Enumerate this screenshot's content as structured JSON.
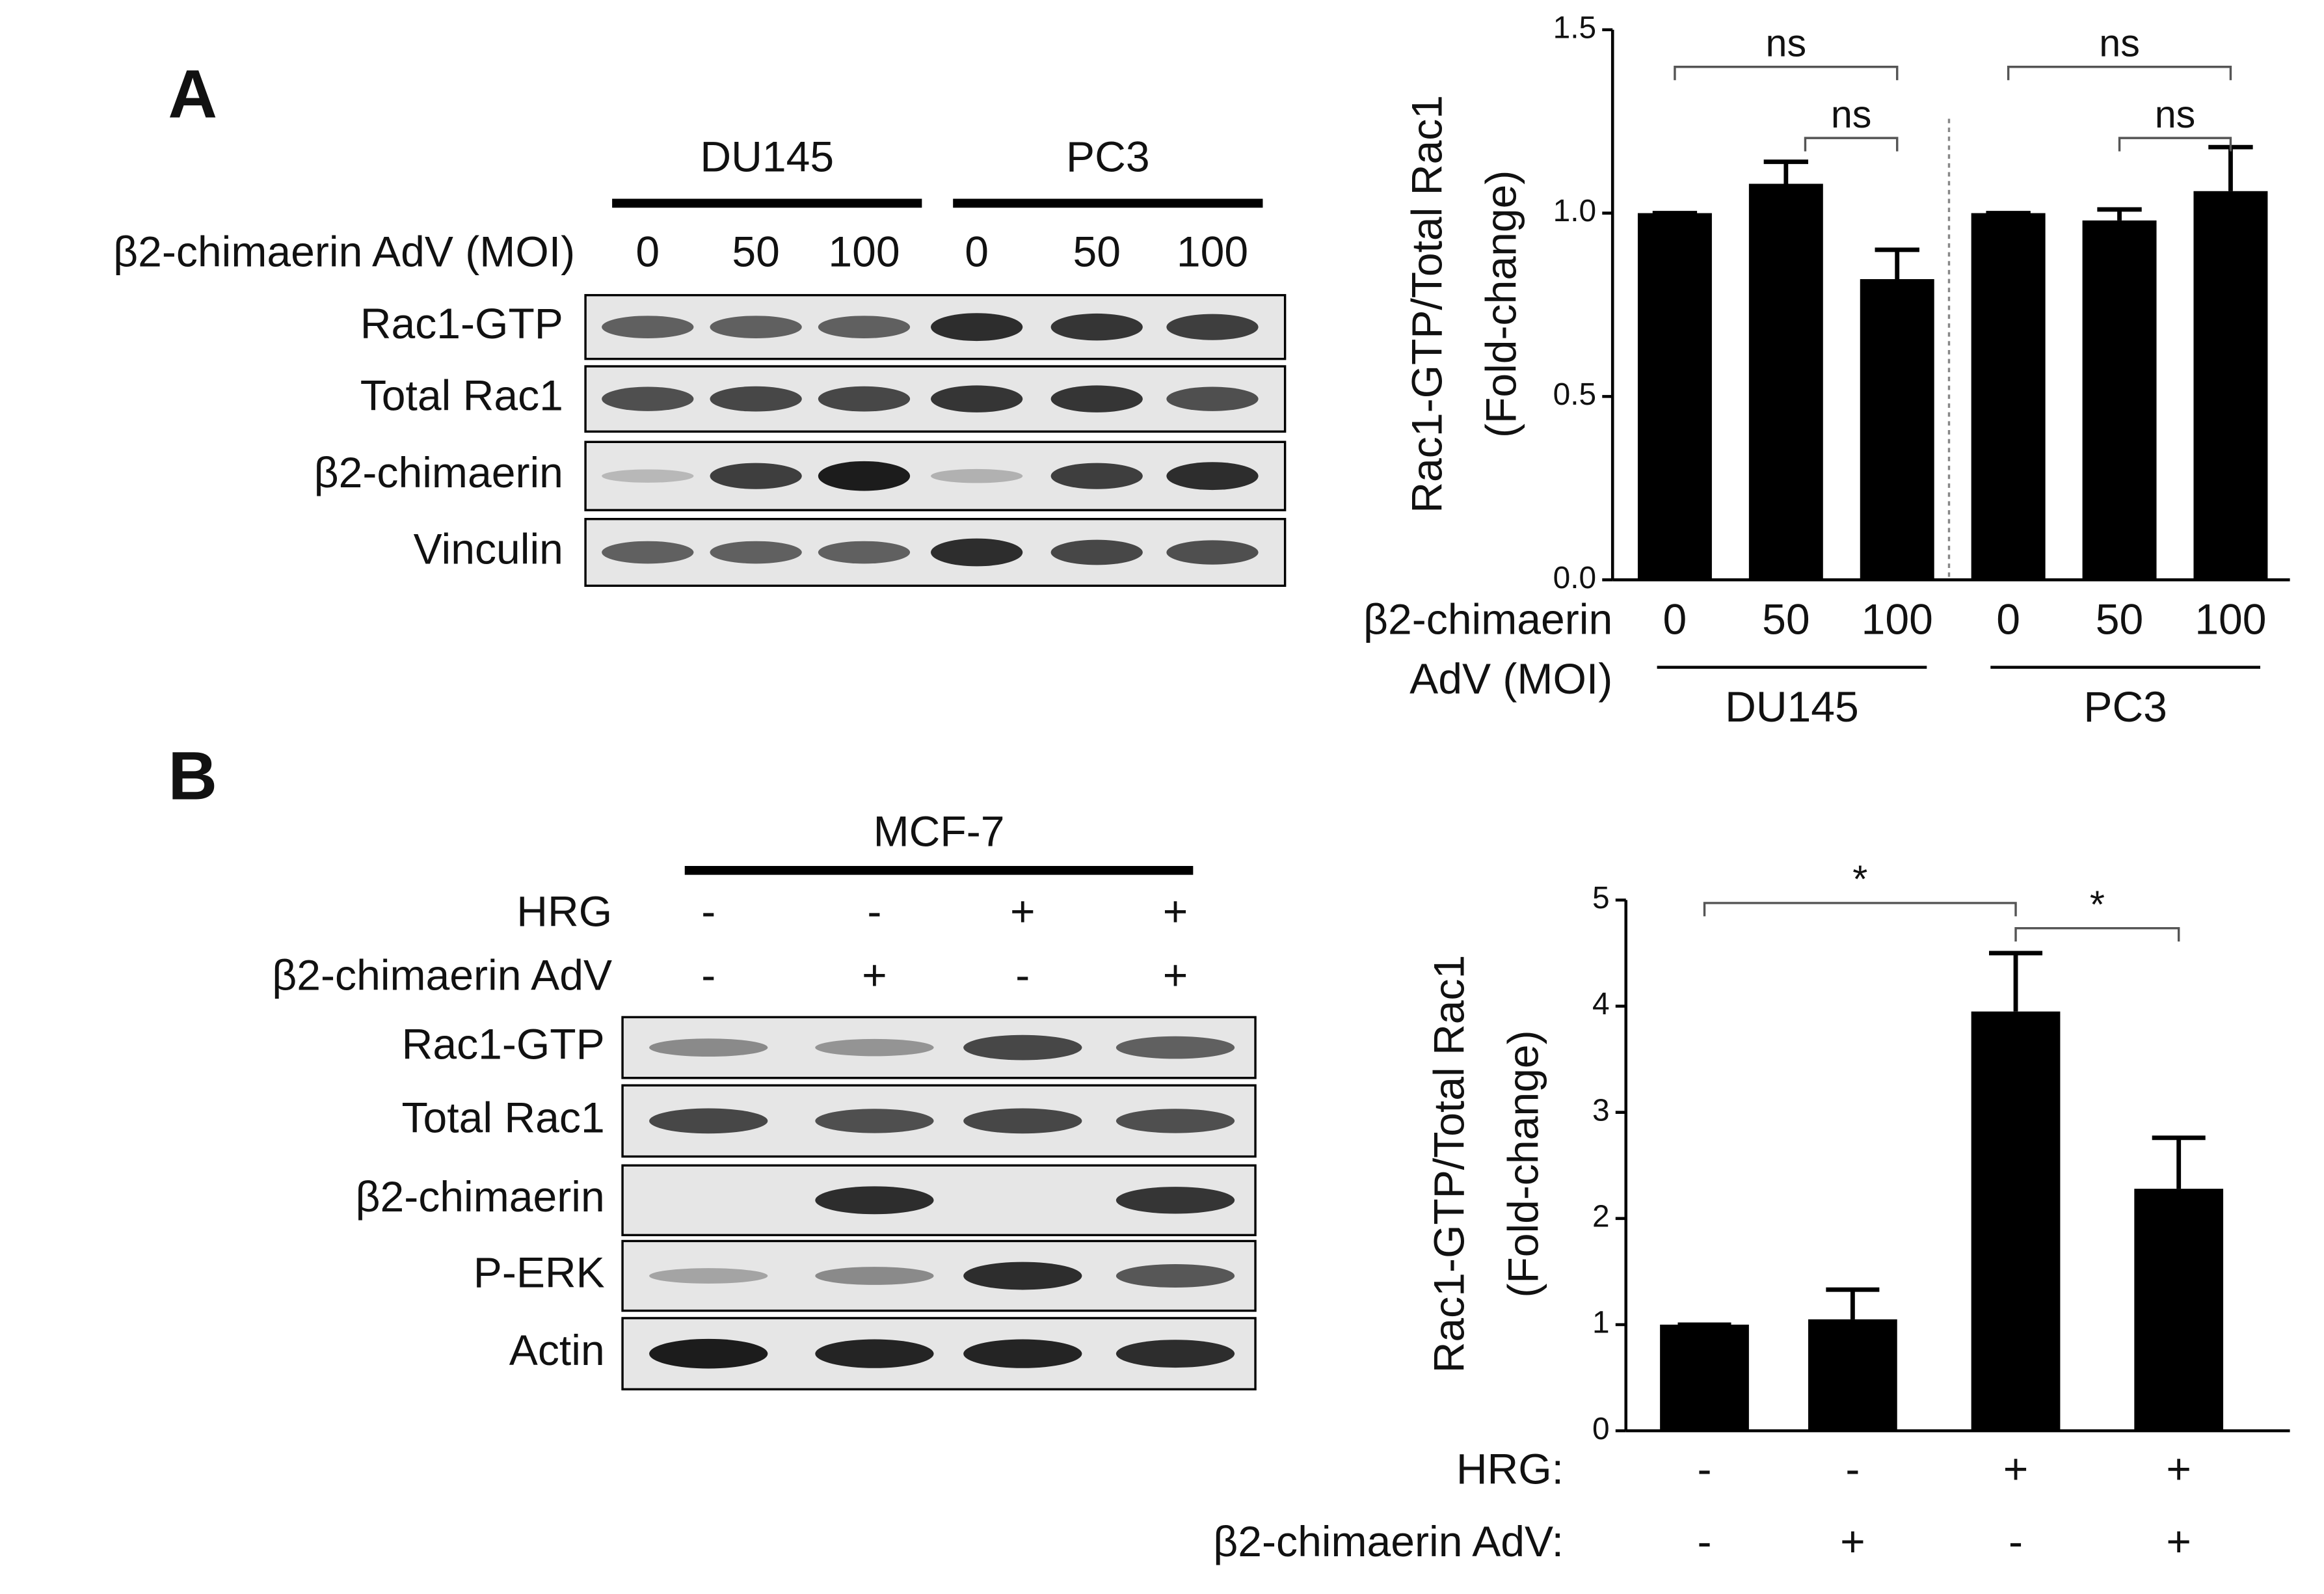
{
  "blots": [
    {
      "panel": "A",
      "groups": [
        "DU145",
        "PC3"
      ],
      "condition_rows": [
        {
          "label": "β2-chimaerin AdV (MOI)",
          "values": [
            "0",
            "50",
            "100",
            "0",
            "50",
            "100"
          ]
        }
      ],
      "bands": [
        "Rac1-GTP",
        "Total Rac1",
        "β2-chimaerin",
        "Vinculin"
      ]
    },
    {
      "panel": "B",
      "groups": [
        "MCF-7"
      ],
      "condition_rows": [
        {
          "label": "HRG",
          "values": [
            "-",
            "-",
            "+",
            "+"
          ]
        },
        {
          "label": "β2-chimaerin AdV",
          "values": [
            "-",
            "+",
            "-",
            "+"
          ]
        }
      ],
      "bands": [
        "Rac1-GTP",
        "Total Rac1",
        "β2-chimaerin",
        "P-ERK",
        "Actin"
      ]
    }
  ],
  "chart_data": [
    {
      "type": "bar",
      "y_label": [
        "Rac1-GTP/Total Rac1",
        "(Fold-change)"
      ],
      "x_label": [
        "β2-chimaerin",
        "AdV (MOI)"
      ],
      "categories": [
        "0",
        "50",
        "100",
        "0",
        "50",
        "100"
      ],
      "groups": [
        "DU145",
        "PC3"
      ],
      "values": [
        1.0,
        1.08,
        0.82,
        1.0,
        0.98,
        1.06
      ],
      "errors": [
        0,
        0.06,
        0.08,
        0,
        0.03,
        0.12
      ],
      "color": "#000000",
      "ylim": [
        0,
        1.5
      ],
      "yticks": [
        {
          "value": 0,
          "label": "0.0"
        },
        {
          "value": 0.5,
          "label": "0.5"
        },
        {
          "value": 1,
          "label": "1.0"
        },
        {
          "value": 1.5,
          "label": "1.5"
        }
      ],
      "annotations": [
        "ns",
        "ns",
        "ns",
        "ns"
      ]
    },
    {
      "type": "bar",
      "y_label": [
        "Rac1-GTP/Total Rac1",
        "(Fold-change)"
      ],
      "condition_rows": [
        {
          "label": "HRG:",
          "values": [
            "-",
            "-",
            "+",
            "+"
          ]
        },
        {
          "label": "β2-chimaerin AdV:",
          "values": [
            "-",
            "+",
            "-",
            "+"
          ]
        }
      ],
      "values": [
        1.0,
        1.05,
        3.95,
        2.28
      ],
      "errors": [
        0,
        0.28,
        0.55,
        0.48
      ],
      "color": "#000000",
      "ylim": [
        0,
        5
      ],
      "yticks": [
        0,
        1,
        2,
        3,
        4,
        5
      ],
      "annotations": [
        "*",
        "*"
      ]
    }
  ]
}
